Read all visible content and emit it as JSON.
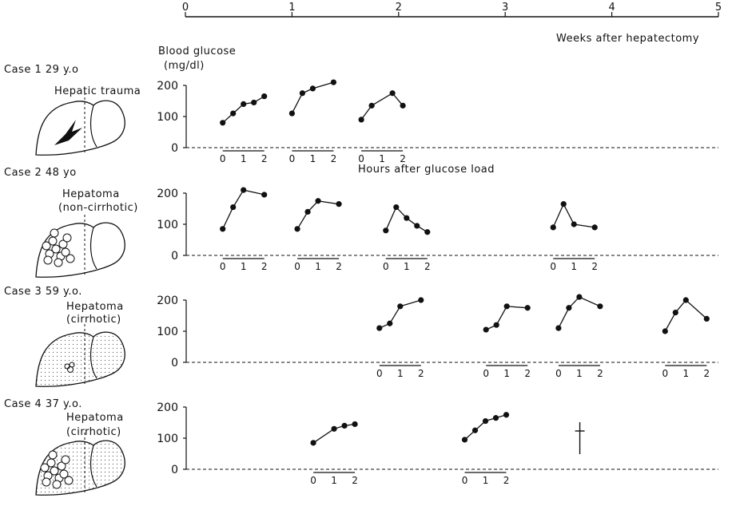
{
  "week_axis": {
    "label": "Weeks after hepatectomy",
    "ticks": [
      "0",
      "1",
      "2",
      "3",
      "4",
      "5"
    ]
  },
  "ylabel": [
    "Blood glucose",
    "(mg/dl)"
  ],
  "hours_label": "Hours after glucose load",
  "cases": [
    {
      "title": "Case 1  29 y.o",
      "diagnosis": [
        "Hepatic trauma"
      ]
    },
    {
      "title": "Case 2  48 yo",
      "diagnosis": [
        "Hepatoma",
        "(non-cirrhotic)"
      ]
    },
    {
      "title": "Case 3  59 y.o.",
      "diagnosis": [
        "Hepatoma",
        "(cirrhotic)"
      ]
    },
    {
      "title": "Case 4  37 y.o.",
      "diagnosis": [
        "Hepatoma",
        "(cirrhotic)"
      ]
    }
  ],
  "chart_data": {
    "type": "line",
    "title": "",
    "xlabel": "Weeks after hepatectomy",
    "ylabel": "Blood glucose (mg/dl)",
    "xlim": [
      0,
      5
    ],
    "ylim": [
      0,
      200
    ],
    "y_ticks": [
      0,
      100,
      200
    ],
    "curve_x_label": "Hours after glucose load",
    "curve_x_ticks": [
      "0",
      "1",
      "2"
    ],
    "panels": [
      {
        "case": "Case 1",
        "curves": [
          {
            "week": 0.35,
            "points": [
              {
                "h": 0,
                "y": 80
              },
              {
                "h": 0.5,
                "y": 110
              },
              {
                "h": 1,
                "y": 140
              },
              {
                "h": 1.5,
                "y": 145
              },
              {
                "h": 2,
                "y": 165
              }
            ]
          },
          {
            "week": 1.0,
            "points": [
              {
                "h": 0,
                "y": 110
              },
              {
                "h": 0.5,
                "y": 175
              },
              {
                "h": 1,
                "y": 190
              },
              {
                "h": 2,
                "y": 210
              }
            ]
          },
          {
            "week": 1.65,
            "points": [
              {
                "h": 0,
                "y": 90
              },
              {
                "h": 0.5,
                "y": 135
              },
              {
                "h": 1.5,
                "y": 175
              },
              {
                "h": 2,
                "y": 135
              }
            ]
          }
        ],
        "annotations": []
      },
      {
        "case": "Case 2",
        "curves": [
          {
            "week": 0.35,
            "points": [
              {
                "h": 0,
                "y": 85
              },
              {
                "h": 0.5,
                "y": 155
              },
              {
                "h": 1,
                "y": 210
              },
              {
                "h": 2,
                "y": 195
              }
            ]
          },
          {
            "week": 1.05,
            "points": [
              {
                "h": 0,
                "y": 85
              },
              {
                "h": 0.5,
                "y": 140
              },
              {
                "h": 1,
                "y": 175
              },
              {
                "h": 2,
                "y": 165
              }
            ]
          },
          {
            "week": 1.88,
            "points": [
              {
                "h": 0,
                "y": 80
              },
              {
                "h": 0.5,
                "y": 155
              },
              {
                "h": 1,
                "y": 120
              },
              {
                "h": 1.5,
                "y": 95
              },
              {
                "h": 2,
                "y": 75
              }
            ]
          },
          {
            "week": 3.45,
            "points": [
              {
                "h": 0,
                "y": 90
              },
              {
                "h": 0.5,
                "y": 165
              },
              {
                "h": 1,
                "y": 100
              },
              {
                "h": 2,
                "y": 90
              }
            ]
          }
        ],
        "annotations": []
      },
      {
        "case": "Case 3",
        "curves": [
          {
            "week": 1.82,
            "points": [
              {
                "h": 0,
                "y": 110
              },
              {
                "h": 0.5,
                "y": 125
              },
              {
                "h": 1,
                "y": 180
              },
              {
                "h": 2,
                "y": 200
              }
            ]
          },
          {
            "week": 2.82,
            "points": [
              {
                "h": 0,
                "y": 105
              },
              {
                "h": 0.5,
                "y": 120
              },
              {
                "h": 1,
                "y": 180
              },
              {
                "h": 2,
                "y": 175
              }
            ]
          },
          {
            "week": 3.5,
            "points": [
              {
                "h": 0,
                "y": 110
              },
              {
                "h": 0.5,
                "y": 175
              },
              {
                "h": 1,
                "y": 210
              },
              {
                "h": 2,
                "y": 180
              }
            ]
          },
          {
            "week": 4.5,
            "points": [
              {
                "h": 0,
                "y": 100
              },
              {
                "h": 0.5,
                "y": 160
              },
              {
                "h": 1,
                "y": 200
              },
              {
                "h": 2,
                "y": 140
              }
            ]
          }
        ],
        "annotations": []
      },
      {
        "case": "Case 4",
        "curves": [
          {
            "week": 1.2,
            "points": [
              {
                "h": 0,
                "y": 85
              },
              {
                "h": 1,
                "y": 130
              },
              {
                "h": 1.5,
                "y": 140
              },
              {
                "h": 2,
                "y": 145
              }
            ]
          },
          {
            "week": 2.62,
            "points": [
              {
                "h": 0,
                "y": 95
              },
              {
                "h": 0.5,
                "y": 125
              },
              {
                "h": 1,
                "y": 155
              },
              {
                "h": 1.5,
                "y": 165
              },
              {
                "h": 2,
                "y": 175
              }
            ]
          }
        ],
        "annotations": [
          {
            "type": "death-cross",
            "week": 3.7,
            "y": 100
          }
        ]
      }
    ]
  }
}
